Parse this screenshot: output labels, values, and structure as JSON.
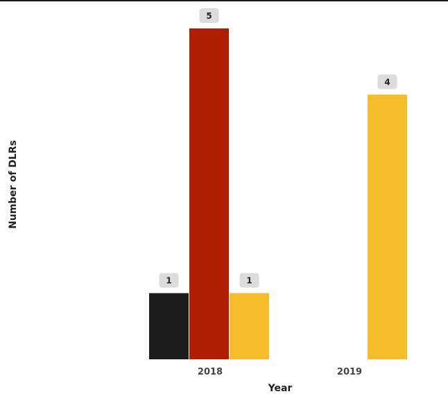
{
  "chart_data": {
    "type": "bar",
    "title": "",
    "xlabel": "Year",
    "ylabel": "Number of DLRs",
    "ylim": [
      0,
      5
    ],
    "categories": [
      "2018",
      "2019"
    ],
    "bars": [
      {
        "category": "2018",
        "value": 1,
        "color": "#1c1c1c"
      },
      {
        "category": "2018",
        "value": 5,
        "color": "#b01e00"
      },
      {
        "category": "2018",
        "value": 1,
        "color": "#f5bd2a"
      },
      {
        "category": "2019",
        "value": 4,
        "color": "#f5bd2a"
      }
    ],
    "data_labels": true,
    "grid": false,
    "legend": "none"
  }
}
